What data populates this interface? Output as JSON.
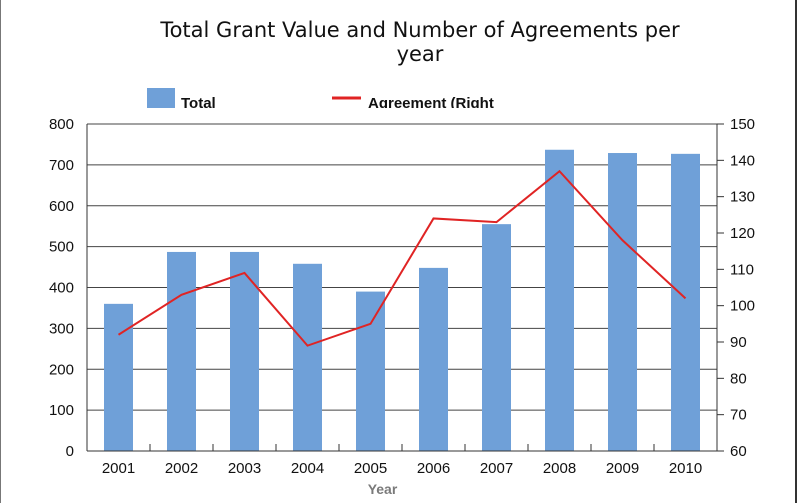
{
  "chart_data": {
    "type": "bar",
    "title": "Total Grant Value and Number of Agreements per year",
    "title_lines": [
      "Total Grant Value and Number of Agreements per",
      "year"
    ],
    "xlabel": "Year",
    "categories": [
      "2001",
      "2002",
      "2003",
      "2004",
      "2005",
      "2006",
      "2007",
      "2008",
      "2009",
      "2010"
    ],
    "series": [
      {
        "name": "Total",
        "type": "bar",
        "axis": "left",
        "color": "#6fa0d8",
        "values": [
          360,
          487,
          487,
          458,
          390,
          448,
          555,
          737,
          729,
          727
        ]
      },
      {
        "name": "Agreement (Right",
        "type": "line",
        "axis": "right",
        "color": "#e02424",
        "values": [
          92,
          103,
          109,
          89,
          95,
          124,
          123,
          137,
          118,
          102
        ]
      }
    ],
    "y_left": {
      "ylim": [
        0,
        800
      ],
      "ticks": [
        "0",
        "100",
        "200",
        "300",
        "400",
        "500",
        "600",
        "700",
        "800"
      ]
    },
    "y_right": {
      "ylim": [
        60,
        150
      ],
      "ticks": [
        "60",
        "70",
        "80",
        "90",
        "100",
        "110",
        "120",
        "130",
        "140",
        "150"
      ]
    },
    "grid": true,
    "legend": {
      "position": "top"
    }
  }
}
